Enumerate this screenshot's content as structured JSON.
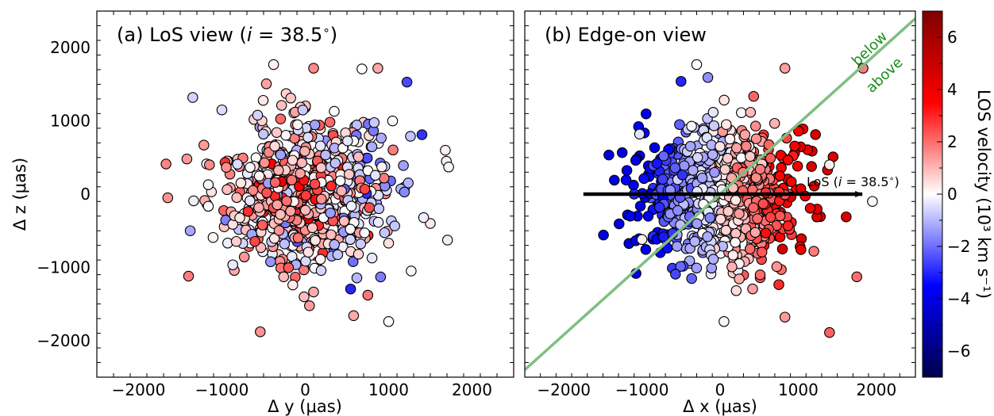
{
  "colors": {
    "frame": "#000000",
    "trend_line": "#7fbf7f",
    "annotation_green": "#1a8c1a",
    "arrow": "#000000"
  },
  "colorbar": {
    "label": "LOS velocity (10³ km s⁻¹)",
    "range": [
      -7,
      7
    ],
    "ticks": [
      "−6",
      "−4",
      "−2",
      "0",
      "2",
      "4",
      "6"
    ],
    "tick_values": [
      -6,
      -4,
      -2,
      0,
      2,
      4,
      6
    ],
    "colormap": "seismic"
  },
  "chart_data": [
    {
      "type": "scatter",
      "title": "(a) LoS view (i = 38.5°)",
      "title_parts": {
        "pre": "(a) LoS view (",
        "ital": "i",
        "post": " = 38.5",
        "deg": "∘",
        "close": ")"
      },
      "xlabel": "Δ y (μas)",
      "ylabel": "Δ z (μas)",
      "xlim": [
        -2500,
        2500
      ],
      "ylim": [
        -2500,
        2500
      ],
      "xticks": [
        -2000,
        -1000,
        0,
        1000,
        2000
      ],
      "yticks": [
        -2000,
        -1000,
        0,
        1000,
        2000
      ],
      "xtick_labels": [
        "−2000",
        "−1000",
        "0",
        "1000",
        "2000"
      ],
      "ytick_labels": [
        "−2000",
        "−1000",
        "0",
        "1000",
        "2000"
      ],
      "grid": false,
      "n_points": 900,
      "points": [
        {
          "x": -1650,
          "y": -50,
          "v": 1.5
        },
        {
          "x": -1400,
          "y": -1120,
          "v": 1.8
        },
        {
          "x": -1350,
          "y": 1320,
          "v": -0.6
        },
        {
          "x": -1380,
          "y": -500,
          "v": -1.2
        },
        {
          "x": -1420,
          "y": 480,
          "v": 1.4
        },
        {
          "x": -1150,
          "y": 400,
          "v": 1.6
        },
        {
          "x": 1680,
          "y": 600,
          "v": 0.2
        },
        {
          "x": 1720,
          "y": 370,
          "v": 0.1
        },
        {
          "x": 1500,
          "y": -400,
          "v": 0.3
        },
        {
          "x": 1420,
          "y": -320,
          "v": -0.2
        },
        {
          "x": 1270,
          "y": -1050,
          "v": -0.1
        },
        {
          "x": 1220,
          "y": 1530,
          "v": -2.5
        },
        {
          "x": 1000,
          "y": -1740,
          "v": 0.0
        },
        {
          "x": 580,
          "y": -1660,
          "v": 1.2
        },
        {
          "x": -540,
          "y": -1880,
          "v": 1.5
        },
        {
          "x": -380,
          "y": 1770,
          "v": 0.2
        },
        {
          "x": 100,
          "y": 1720,
          "v": 1.6
        },
        {
          "x": 680,
          "y": 1710,
          "v": 0.0
        },
        {
          "x": 870,
          "y": 1720,
          "v": 1.2
        },
        {
          "x": 750,
          "y": -1380,
          "v": 1.9
        },
        {
          "x": -1000,
          "y": 1150,
          "v": -0.5
        }
      ]
    },
    {
      "type": "scatter",
      "title": "(b) Edge-on view",
      "xlabel": "Δ x (μas)",
      "xlim": [
        -2500,
        2500
      ],
      "ylim": [
        -2500,
        2500
      ],
      "xticks": [
        -2000,
        -1000,
        0,
        1000,
        2000
      ],
      "xtick_labels": [
        "−2000",
        "−1000",
        "0",
        "1000",
        "2000"
      ],
      "grid": false,
      "n_points": 900,
      "line": {
        "x": [
          -2500,
          2500
        ],
        "y": [
          -2400,
          2400
        ]
      },
      "line_labels": {
        "above": "above",
        "below": "below"
      },
      "arrow": {
        "x0": -1750,
        "x1": 1820,
        "y": 0,
        "label": "LoS (i = 38.5°)",
        "label_parts": {
          "pre": "LoS (",
          "ital": "i",
          "post": " = 38.5",
          "deg": "∘",
          "close": ")"
        }
      },
      "points": [
        {
          "x": 1950,
          "y": -100,
          "v": 0.1
        },
        {
          "x": 1830,
          "y": 1720,
          "v": 1.8
        },
        {
          "x": 1750,
          "y": -1130,
          "v": 2.0
        },
        {
          "x": 1400,
          "y": -1890,
          "v": 2.2
        },
        {
          "x": 50,
          "y": -1740,
          "v": 0.1
        },
        {
          "x": 830,
          "y": -1680,
          "v": 1.4
        },
        {
          "x": -300,
          "y": 1770,
          "v": 0.0
        },
        {
          "x": 830,
          "y": 1720,
          "v": 1.3
        },
        {
          "x": -1150,
          "y": -300,
          "v": -3.5
        },
        {
          "x": -1000,
          "y": -620,
          "v": 0.2
        },
        {
          "x": -1030,
          "y": 820,
          "v": -0.4
        },
        {
          "x": -500,
          "y": 1540,
          "v": -3.0
        },
        {
          "x": -1100,
          "y": 0,
          "v": -3.0
        },
        {
          "x": 1200,
          "y": -780,
          "v": 1.8
        },
        {
          "x": 1400,
          "y": 400,
          "v": 0.2
        }
      ]
    }
  ]
}
